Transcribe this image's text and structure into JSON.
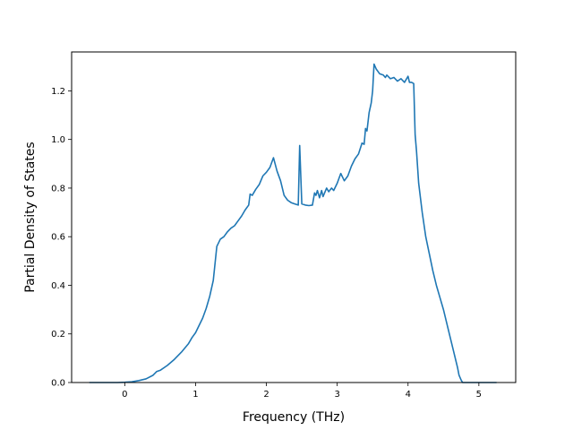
{
  "chart_data": {
    "type": "line",
    "title": "",
    "xlabel": "Frequency (THz)",
    "ylabel": "Partial Density of States",
    "xlim": [
      -0.75,
      5.52
    ],
    "ylim": [
      0.0,
      1.36
    ],
    "xticks": [
      0,
      1,
      2,
      3,
      4,
      5
    ],
    "yticks": [
      0.0,
      0.2,
      0.4,
      0.6,
      0.8,
      1.0,
      1.2
    ],
    "grid": false,
    "line_color": "#1f77b4",
    "series": [
      {
        "x": [
          -0.5,
          -0.3,
          -0.1,
          0.0,
          0.1,
          0.2,
          0.3,
          0.4,
          0.45,
          0.5,
          0.6,
          0.7,
          0.8,
          0.9,
          0.95,
          1.0,
          1.05,
          1.1,
          1.15,
          1.2,
          1.25,
          1.3,
          1.35,
          1.4,
          1.45,
          1.5,
          1.55,
          1.6,
          1.65,
          1.7,
          1.75,
          1.77,
          1.8,
          1.85,
          1.9,
          1.95,
          2.0,
          2.05,
          2.1,
          2.15,
          2.2,
          2.25,
          2.3,
          2.35,
          2.4,
          2.45,
          2.47,
          2.5,
          2.55,
          2.6,
          2.65,
          2.68,
          2.7,
          2.72,
          2.75,
          2.78,
          2.8,
          2.85,
          2.88,
          2.92,
          2.95,
          3.0,
          3.05,
          3.1,
          3.15,
          3.2,
          3.25,
          3.3,
          3.35,
          3.38,
          3.4,
          3.42,
          3.45,
          3.48,
          3.5,
          3.52,
          3.55,
          3.6,
          3.65,
          3.68,
          3.7,
          3.75,
          3.8,
          3.85,
          3.9,
          3.95,
          4.0,
          4.02,
          4.05,
          4.08,
          4.1,
          4.12,
          4.15,
          4.2,
          4.25,
          4.3,
          4.35,
          4.4,
          4.45,
          4.5,
          4.55,
          4.6,
          4.65,
          4.7,
          4.72,
          4.75,
          4.77,
          4.8,
          4.85,
          5.0,
          5.25
        ],
        "y": [
          0.0,
          0.0,
          0.0,
          0.001,
          0.003,
          0.008,
          0.015,
          0.03,
          0.045,
          0.05,
          0.07,
          0.095,
          0.125,
          0.16,
          0.185,
          0.205,
          0.235,
          0.265,
          0.305,
          0.355,
          0.42,
          0.56,
          0.59,
          0.6,
          0.62,
          0.635,
          0.645,
          0.665,
          0.685,
          0.71,
          0.73,
          0.775,
          0.77,
          0.795,
          0.815,
          0.85,
          0.865,
          0.885,
          0.925,
          0.87,
          0.83,
          0.77,
          0.75,
          0.74,
          0.735,
          0.73,
          0.975,
          0.735,
          0.73,
          0.728,
          0.73,
          0.78,
          0.77,
          0.79,
          0.76,
          0.79,
          0.765,
          0.8,
          0.785,
          0.8,
          0.79,
          0.82,
          0.86,
          0.83,
          0.85,
          0.89,
          0.92,
          0.94,
          0.985,
          0.98,
          1.045,
          1.035,
          1.11,
          1.15,
          1.2,
          1.31,
          1.29,
          1.27,
          1.265,
          1.255,
          1.265,
          1.25,
          1.255,
          1.24,
          1.25,
          1.235,
          1.26,
          1.235,
          1.235,
          1.23,
          1.02,
          0.95,
          0.82,
          0.7,
          0.6,
          0.53,
          0.46,
          0.4,
          0.35,
          0.3,
          0.24,
          0.18,
          0.12,
          0.06,
          0.03,
          0.01,
          0.0,
          0.0,
          0.0,
          0.0,
          0.0
        ]
      }
    ]
  }
}
